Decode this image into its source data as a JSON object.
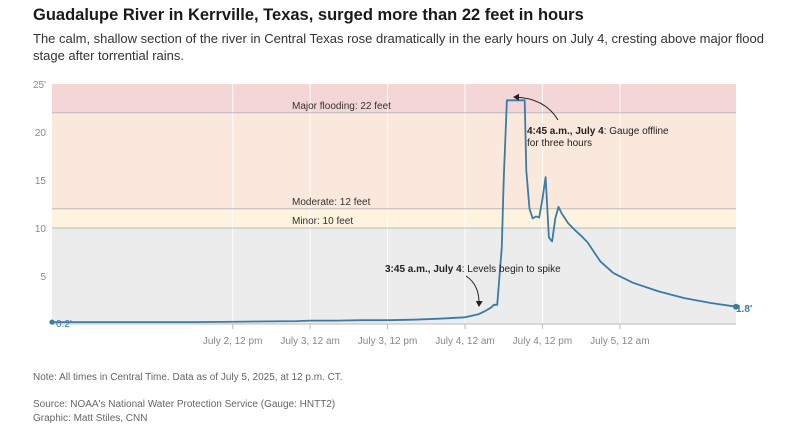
{
  "header": {
    "title": "Guadalupe River in Kerrville, Texas, surged more than 22 feet in hours",
    "subtitle": "The calm, shallow section of the river in Central Texas rose dramatically in the early hours on July 4, cresting above major flood stage after torrential rains."
  },
  "footer": {
    "note": "Note: All times in Central Time. Data as of July 5, 2025, at 12 p.m. CT.",
    "source": "Source: NOAA's National Water Protection Service (Gauge: HNTT2)",
    "credit": "Graphic: Matt Stiles, CNN"
  },
  "colors": {
    "line": "#3a7ca5",
    "major_band": "#f5d6d6",
    "moderate_band": "#fbe8dc",
    "minor_band": "#fdf3df",
    "normal_band": "#ececec",
    "threshold_line": "#bbbbbb"
  },
  "chart_data": {
    "type": "line",
    "x_unit": "hours after July 1, 12 a.m. CT",
    "ylim": [
      0,
      25
    ],
    "xlim": [
      8,
      114
    ],
    "y_ticks": [
      {
        "value": 0,
        "label": ""
      },
      {
        "value": 5,
        "label": "5"
      },
      {
        "value": 10,
        "label": "10"
      },
      {
        "value": 15,
        "label": "15"
      },
      {
        "value": 20,
        "label": "20"
      },
      {
        "value": 25,
        "label": "25'"
      }
    ],
    "x_ticks": [
      {
        "value": 36,
        "label": "July 2, 12 pm"
      },
      {
        "value": 48,
        "label": "July 3, 12 am"
      },
      {
        "value": 60,
        "label": "July 3, 12 pm"
      },
      {
        "value": 72,
        "label": "July 4, 12 am"
      },
      {
        "value": 84,
        "label": "July 4, 12 pm"
      },
      {
        "value": 96,
        "label": "July 5, 12 am"
      }
    ],
    "thresholds": [
      {
        "name": "Minor",
        "value": 10,
        "label": "Minor: 10 feet"
      },
      {
        "name": "Moderate",
        "value": 12,
        "label": "Moderate: 12 feet"
      },
      {
        "name": "Major",
        "value": 22,
        "label": "Major flooding: 22 feet"
      }
    ],
    "series": [
      {
        "x": [
          8,
          15,
          22,
          30,
          38,
          46,
          48,
          52,
          56,
          60,
          64,
          68,
          72,
          74,
          75,
          76,
          76.5,
          77,
          77.7,
          78,
          78.5,
          80,
          81,
          81.25,
          81.5,
          82,
          82.5,
          83,
          83.5,
          84,
          84.5,
          85,
          85.5,
          86,
          86.5,
          87,
          87.5,
          88,
          89,
          90,
          91,
          92,
          93,
          95,
          98,
          102,
          106,
          110,
          114
        ],
        "y": [
          0.2,
          0.2,
          0.2,
          0.2,
          0.25,
          0.3,
          0.35,
          0.35,
          0.4,
          0.4,
          0.45,
          0.55,
          0.7,
          1.0,
          1.3,
          1.7,
          2.0,
          2.0,
          8.0,
          15.0,
          23.3,
          23.3,
          23.3,
          23.3,
          16.0,
          12.0,
          11.0,
          11.2,
          11.1,
          13.0,
          15.3,
          9.0,
          8.6,
          11.0,
          12.2,
          11.5,
          11.0,
          10.5,
          9.8,
          9.2,
          8.5,
          7.5,
          6.5,
          5.3,
          4.3,
          3.4,
          2.7,
          2.2,
          1.8
        ]
      }
    ],
    "start_label": "0.2'",
    "end_label": "1.8'",
    "annotations": [
      {
        "bold": "4:45 a.m., July 4",
        "text": ": Gauge offline",
        "text2": "for three hours"
      },
      {
        "bold": "3:45 a.m., July 4",
        "text": ": Levels begin to spike"
      }
    ]
  }
}
